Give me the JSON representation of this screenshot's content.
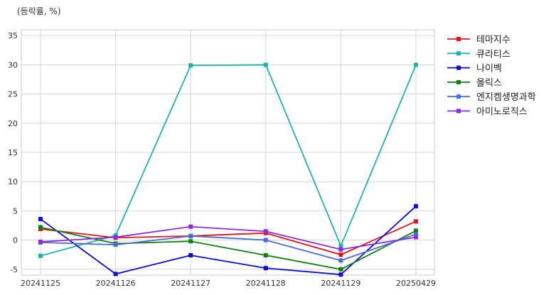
{
  "chart_data": {
    "type": "line",
    "unit_label": "(등락률, %)",
    "x": [
      "20241125",
      "20241126",
      "20241127",
      "20241128",
      "20241129",
      "20250429"
    ],
    "ylim": [
      -6,
      36
    ],
    "yticks": [
      -5,
      0,
      5,
      10,
      15,
      20,
      25,
      30,
      35
    ],
    "grid": true,
    "legend_position": "right",
    "series": [
      {
        "name": "테마지수",
        "color": "#e0151a",
        "values": [
          1.9,
          0.4,
          0.7,
          1.2,
          -2.5,
          3.2
        ]
      },
      {
        "name": "큐라티스",
        "color": "#20b2aa",
        "values": [
          -2.7,
          0.8,
          29.9,
          30.0,
          -1.0,
          30.0
        ]
      },
      {
        "name": "나이벡",
        "color": "#0a0ad0",
        "values": [
          3.6,
          -5.8,
          -2.6,
          -4.8,
          -5.9,
          5.8
        ]
      },
      {
        "name": "올릭스",
        "color": "#108010",
        "values": [
          2.2,
          -0.6,
          -0.2,
          -2.6,
          -5.0,
          1.6
        ]
      },
      {
        "name": "엔지켐생명과학",
        "color": "#4a6fd0",
        "values": [
          -0.4,
          -0.8,
          0.7,
          0.0,
          -3.5,
          1.0
        ]
      },
      {
        "name": "아미노로직스",
        "color": "#8a2be2",
        "values": [
          -0.3,
          0.5,
          2.3,
          1.5,
          -1.6,
          0.5
        ]
      }
    ]
  }
}
